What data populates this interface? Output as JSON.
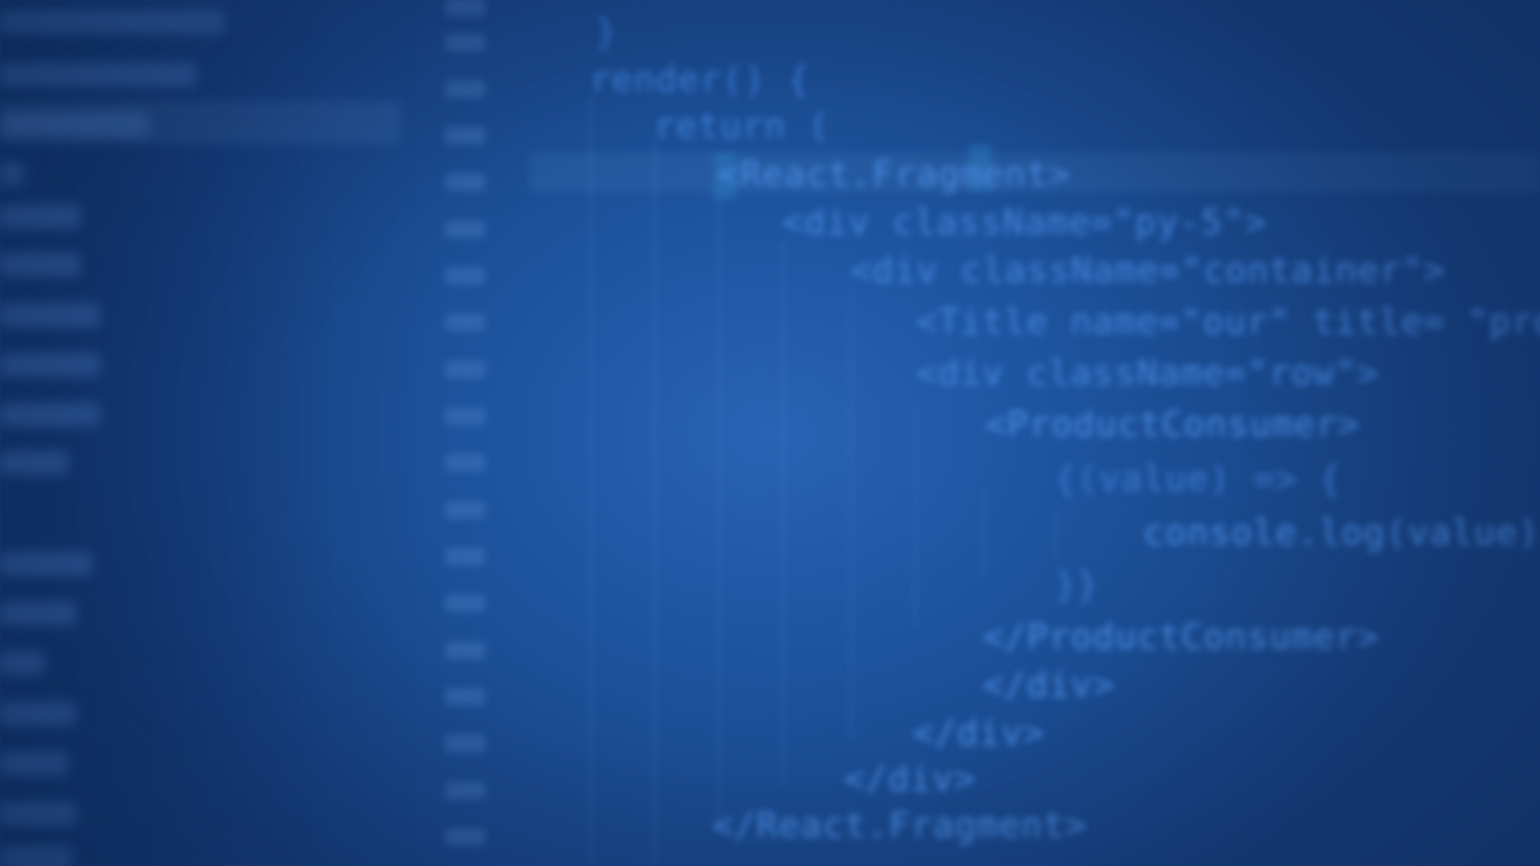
{
  "editor": {
    "theme_colors": {
      "background": "#1f56a2",
      "keyword": "#3f7fd6",
      "tag": "#4b8be0",
      "string": "#3e7ad0"
    },
    "code_lines": [
      {
        "text": "}"
      },
      {
        "text": "render() {"
      },
      {
        "text": "return ("
      },
      {
        "text": "<React.Fragment>"
      },
      {
        "text": "<div className=\"py-5\">"
      },
      {
        "text": "<div className=\"container\">"
      },
      {
        "text": "<Title name=\"our\" title= \"product"
      },
      {
        "text": "<div className=\"row\">"
      },
      {
        "text": "<ProductConsumer>"
      },
      {
        "text": "{(value) => {"
      },
      {
        "text": "console.log(value)"
      },
      {
        "text": "}}"
      },
      {
        "text": "</ProductConsumer>"
      },
      {
        "text": "</div>"
      },
      {
        "text": "</div>"
      },
      {
        "text": "</div>"
      },
      {
        "text": "</React.Fragment>"
      }
    ]
  }
}
